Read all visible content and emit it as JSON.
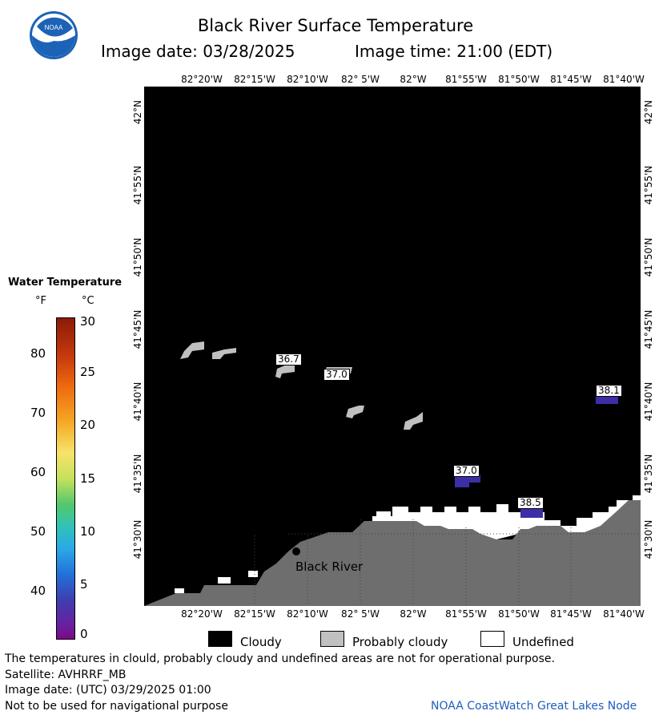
{
  "header": {
    "title": "Black River Surface Temperature",
    "image_date": "Image date: 03/28/2025",
    "image_time": "Image time: 21:00 (EDT)",
    "logo_text": "NOAA"
  },
  "map": {
    "lon_labels": [
      "82°20'W",
      "82°15'W",
      "82°10'W",
      "82° 5'W",
      "82°W",
      "81°55'W",
      "81°50'W",
      "81°45'W",
      "81°40'W"
    ],
    "lat_labels": [
      "42°N",
      "41°55'N",
      "41°50'N",
      "41°45'N",
      "41°40'N",
      "41°35'N",
      "41°30'N"
    ],
    "place_label": "Black River",
    "temperature_labels": [
      "36.7",
      "37.0",
      "37.0",
      "38.5",
      "38.1"
    ]
  },
  "color_scale": {
    "title": "Water Temperature",
    "unit_f": "°F",
    "unit_c": "°C",
    "f_ticks": [
      "80",
      "70",
      "60",
      "50",
      "40"
    ],
    "c_ticks": [
      "30",
      "25",
      "20",
      "15",
      "10",
      "5",
      "0"
    ]
  },
  "legend": {
    "cloudy": "Cloudy",
    "probably_cloudy": "Probably cloudy",
    "undefined": "Undefined",
    "colors": {
      "cloudy": "#000000",
      "probably_cloudy": "#c0c0c0",
      "undefined": "#ffffff",
      "land": "#6e6e6e"
    }
  },
  "footer": {
    "disclaimer": "The temperatures in clould, probably cloudy and undefined areas are not for operational purpose.",
    "satellite": "Satellite: AVHRRF_MB",
    "utc_date": "Image date: (UTC) 03/29/2025  01:00",
    "navigation": "Not to be used for navigational purpose",
    "credit": "NOAA CoastWatch Great Lakes Node"
  }
}
